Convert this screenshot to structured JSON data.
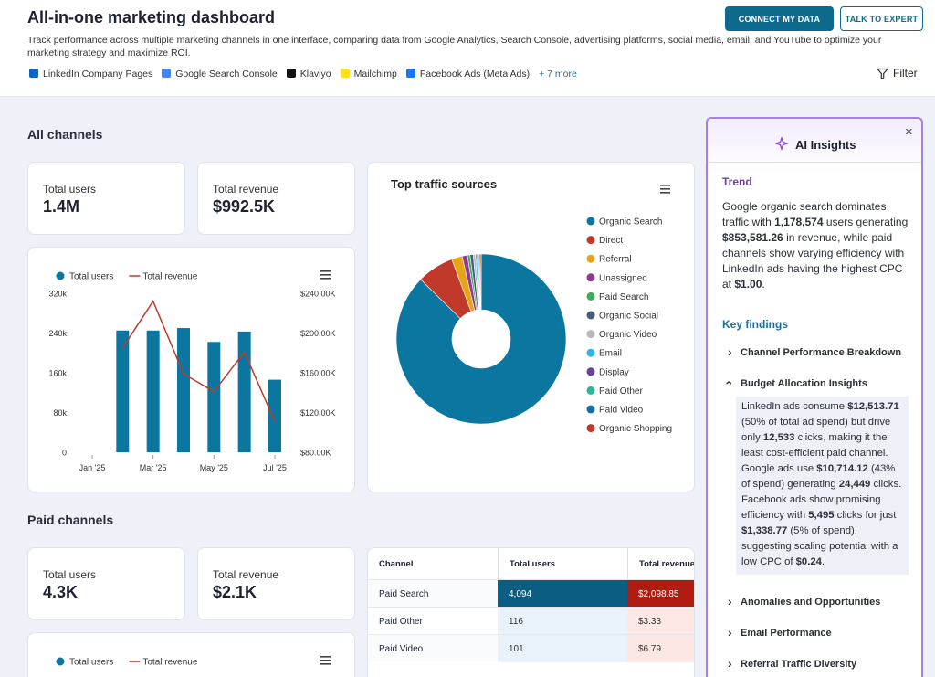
{
  "header": {
    "title": "All-in-one marketing dashboard",
    "description": "Track performance across multiple marketing channels in one interface, comparing data from Google Analytics, Search Console, advertising platforms, social media, email, and YouTube to optimize your marketing strategy and maximize ROI.",
    "sources": [
      "LinkedIn Company Pages",
      "Google Search Console",
      "Klaviyo",
      "Mailchimp",
      "Facebook Ads (Meta Ads)"
    ],
    "more": "+ 7 more",
    "buttons": [
      "CONNECT MY DATA",
      "TALK TO EXPERT"
    ],
    "filter": "Filter"
  },
  "all_channels": {
    "title": "All channels",
    "kpis": [
      {
        "label": "Total users",
        "value": "1.4M"
      },
      {
        "label": "Total revenue",
        "value": "$992.5K"
      }
    ],
    "chart": {
      "type": "bar-line",
      "categories": [
        "Jan '25",
        null,
        "Mar '25",
        null,
        "May '25",
        null,
        "Jul '25"
      ],
      "series": [
        {
          "name": "Total users",
          "color": "#0b76a0",
          "values": [
            null,
            245000,
            245000,
            250000,
            222000,
            243000,
            146000
          ]
        },
        {
          "name": "Total revenue",
          "color": "#c0392b",
          "axis": "y2",
          "values": [
            null,
            185000,
            232000,
            159000,
            141000,
            181000,
            111000
          ]
        }
      ],
      "ylim": [
        0,
        320000
      ],
      "yticks": [
        0,
        {
          "value": 80000,
          "label": "80k"
        },
        {
          "value": 160000,
          "label": "160k"
        },
        {
          "value": 240000,
          "label": "240k"
        },
        {
          "value": 320000,
          "label": "320k"
        }
      ],
      "y2lim": [
        80000,
        240000
      ],
      "y2ticks": [
        {
          "value": 80000,
          "label": "$80.00K"
        },
        {
          "value": 120000,
          "label": "$120.00K"
        },
        {
          "value": 160000,
          "label": "$160.00K"
        },
        {
          "value": 200000,
          "label": "$200.00K"
        },
        {
          "value": 240000,
          "label": "$240.00K"
        }
      ]
    },
    "donut": {
      "type": "donut",
      "title": "Top traffic sources",
      "categories": [
        "Organic Search",
        "Direct",
        "Referral",
        "Unassigned",
        "Paid Search",
        "Organic Social",
        "Organic Video",
        "Email",
        "Display",
        "Paid Other",
        "Paid Video",
        "Organic Shopping"
      ],
      "values": [
        87,
        7,
        2,
        1,
        0.5,
        0.6,
        0.4,
        0.3,
        0.2,
        0.2,
        0.2,
        0.2
      ],
      "colors": [
        "#0b76a0",
        "#c0392b",
        "#e8a317",
        "#8e3b8f",
        "#3cae5c",
        "#4a5c7a",
        "#b8b8b8",
        "#2fb4e8",
        "#6a3fa0",
        "#2bb59a",
        "#0e6f9c",
        "#c0392b"
      ]
    }
  },
  "paid_channels": {
    "title": "Paid channels",
    "kpis": [
      {
        "label": "Total users",
        "value": "4.3K"
      },
      {
        "label": "Total revenue",
        "value": "$2.1K"
      }
    ],
    "chart_legend": [
      {
        "name": "Total users",
        "color": "#0b76a0"
      },
      {
        "name": "Total revenue",
        "color": "#c0392b"
      }
    ],
    "table": {
      "columns": [
        "Channel",
        "Total users",
        "Total revenue"
      ],
      "rows": [
        {
          "channel": "Paid Search",
          "users": {
            "value": 4094,
            "label": "4,094"
          },
          "revenue": {
            "value": 2098.85,
            "label": "$2,098.85"
          }
        },
        {
          "channel": "Paid Other",
          "users": {
            "value": 116,
            "label": "116"
          },
          "revenue": {
            "value": 3.33,
            "label": "$3.33"
          }
        },
        {
          "channel": "Paid Video",
          "users": {
            "value": 101,
            "label": "101"
          },
          "revenue": {
            "value": 6.79,
            "label": "$6.79"
          }
        }
      ]
    }
  },
  "ai_insights": {
    "title": "AI Insights",
    "trend_heading": "Trend",
    "trend_parts": [
      "Google organic search dominates traffic with ",
      "1,178,574",
      " users generating ",
      "$853,581.26",
      " in revenue, while paid channels show varying efficiency with LinkedIn ads having the highest CPC at ",
      "$1.00",
      "."
    ],
    "findings_heading": "Key findings",
    "findings": [
      {
        "title": "Channel Performance Breakdown"
      },
      {
        "title": "Budget Allocation Insights",
        "parts": [
          "LinkedIn ads consume ",
          "$12,513.71",
          " (50% of total ad spend) but drive only ",
          "12,533",
          " clicks, making it the least cost-efficient paid channel. Google ads use ",
          "$10,714.12",
          " (43% of spend) generating ",
          "24,449",
          " clicks. Facebook ads show promising efficiency with ",
          "5,495",
          " clicks for just ",
          "$1,338.77",
          " (5% of spend), suggesting scaling potential with a low CPC of ",
          "$0.24",
          "."
        ]
      },
      {
        "title": "Anomalies and Opportunities"
      },
      {
        "title": "Email Performance"
      },
      {
        "title": "Referral Traffic Diversity"
      }
    ]
  }
}
